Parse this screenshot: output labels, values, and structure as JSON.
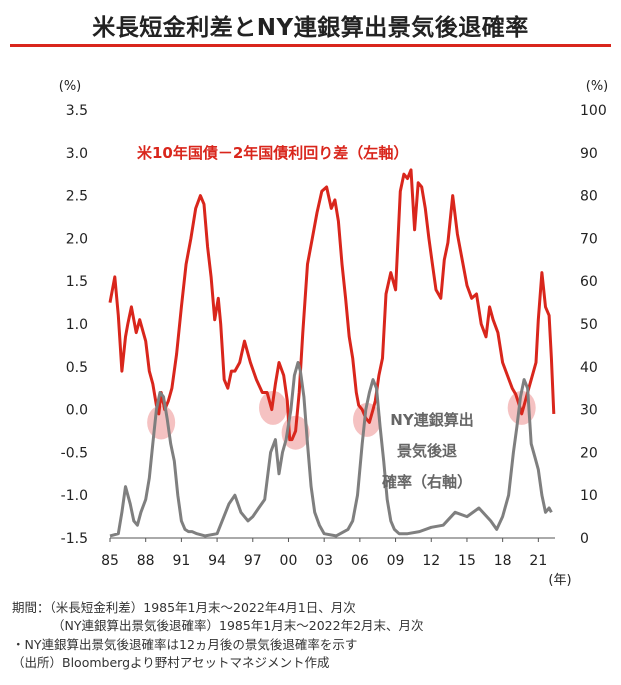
{
  "title": "米長短金利差とNY連銀算出景気後退確率",
  "chart_data": {
    "type": "line",
    "left_axis": {
      "unit": "(%)",
      "ylim": [
        -1.5,
        3.5
      ],
      "ticks": [
        "-1.5",
        "-1.0",
        "-0.5",
        "0.0",
        "0.5",
        "1.0",
        "1.5",
        "2.0",
        "2.5",
        "3.0",
        "3.5"
      ]
    },
    "right_axis": {
      "unit": "(%)",
      "ylim": [
        0,
        100
      ],
      "ticks": [
        "0",
        "10",
        "20",
        "30",
        "40",
        "50",
        "60",
        "70",
        "80",
        "90",
        "100"
      ]
    },
    "x_axis": {
      "unit": "(年)",
      "xlim": [
        1985,
        2022.4
      ],
      "tick_labels": [
        "85",
        "88",
        "91",
        "94",
        "97",
        "00",
        "03",
        "06",
        "09",
        "12",
        "15",
        "18",
        "21"
      ]
    },
    "series": [
      {
        "name": "米10年国債－2年国債利回り差（左軸）",
        "axis": "left",
        "color": "#d9261c",
        "x": [
          1985.0,
          1985.4,
          1985.7,
          1986.0,
          1986.3,
          1986.5,
          1986.8,
          1987.2,
          1987.5,
          1988.0,
          1988.3,
          1988.6,
          1988.9,
          1989.1,
          1989.3,
          1989.6,
          1989.9,
          1990.2,
          1990.6,
          1991.0,
          1991.4,
          1991.8,
          1992.2,
          1992.6,
          1992.9,
          1993.2,
          1993.5,
          1993.8,
          1994.1,
          1994.3,
          1994.6,
          1994.9,
          1995.2,
          1995.5,
          1995.9,
          1996.3,
          1996.8,
          1997.3,
          1997.8,
          1998.2,
          1998.6,
          1998.9,
          1999.2,
          1999.6,
          1999.9,
          2000.1,
          2000.3,
          2000.6,
          2000.9,
          2001.2,
          2001.6,
          2002.0,
          2002.4,
          2002.8,
          2003.2,
          2003.6,
          2003.9,
          2004.2,
          2004.5,
          2004.8,
          2005.1,
          2005.4,
          2005.7,
          2005.9,
          2006.2,
          2006.5,
          2006.8,
          2007.1,
          2007.3,
          2007.6,
          2007.9,
          2008.2,
          2008.6,
          2009.0,
          2009.4,
          2009.7,
          2010.0,
          2010.3,
          2010.6,
          2010.9,
          2011.2,
          2011.5,
          2011.8,
          2012.1,
          2012.4,
          2012.8,
          2013.1,
          2013.4,
          2013.8,
          2014.2,
          2014.6,
          2015.0,
          2015.4,
          2015.8,
          2016.2,
          2016.6,
          2016.9,
          2017.2,
          2017.6,
          2018.0,
          2018.4,
          2018.8,
          2019.1,
          2019.4,
          2019.6,
          2019.9,
          2020.2,
          2020.5,
          2020.8,
          2021.0,
          2021.3,
          2021.6,
          2021.9,
          2022.1,
          2022.3
        ],
        "y": [
          1.25,
          1.55,
          1.1,
          0.45,
          0.85,
          1.0,
          1.2,
          0.9,
          1.05,
          0.8,
          0.45,
          0.3,
          0.05,
          -0.05,
          0.2,
          0.0,
          0.1,
          0.25,
          0.65,
          1.2,
          1.7,
          2.0,
          2.35,
          2.5,
          2.4,
          1.9,
          1.55,
          1.05,
          1.3,
          1.0,
          0.35,
          0.25,
          0.45,
          0.45,
          0.55,
          0.8,
          0.55,
          0.35,
          0.2,
          0.2,
          0.0,
          0.3,
          0.55,
          0.4,
          0.1,
          -0.35,
          -0.35,
          -0.25,
          0.2,
          0.9,
          1.7,
          2.0,
          2.3,
          2.55,
          2.6,
          2.35,
          2.45,
          2.2,
          1.7,
          1.3,
          0.85,
          0.6,
          0.2,
          0.05,
          0.0,
          -0.1,
          -0.15,
          0.0,
          0.1,
          0.4,
          0.6,
          1.35,
          1.6,
          1.4,
          2.55,
          2.75,
          2.7,
          2.8,
          2.1,
          2.65,
          2.6,
          2.35,
          2.0,
          1.7,
          1.4,
          1.3,
          1.75,
          1.95,
          2.5,
          2.05,
          1.75,
          1.45,
          1.3,
          1.35,
          1.0,
          0.85,
          1.2,
          1.05,
          0.9,
          0.55,
          0.4,
          0.25,
          0.18,
          0.05,
          -0.05,
          0.1,
          0.25,
          0.4,
          0.55,
          1.05,
          1.6,
          1.2,
          1.1,
          0.6,
          -0.05
        ]
      },
      {
        "name": "NY連銀算出景気後退確率（右軸）",
        "axis": "right",
        "color": "#7f7f7f",
        "x": [
          1985.0,
          1985.7,
          1986.0,
          1986.3,
          1986.7,
          1987.0,
          1987.3,
          1987.6,
          1988.0,
          1988.3,
          1988.6,
          1988.9,
          1989.2,
          1989.5,
          1989.8,
          1990.1,
          1990.4,
          1990.7,
          1991.0,
          1991.3,
          1991.6,
          1991.9,
          1992.3,
          1993.0,
          1994.0,
          1995.0,
          1995.5,
          1996.0,
          1996.6,
          1997.0,
          1997.5,
          1998.0,
          1998.5,
          1998.9,
          1999.2,
          1999.5,
          1999.8,
          2000.2,
          2000.5,
          2000.8,
          2001.0,
          2001.3,
          2001.6,
          2001.9,
          2002.2,
          2002.6,
          2003.0,
          2004.0,
          2005.0,
          2005.4,
          2005.8,
          2006.2,
          2006.5,
          2006.8,
          2007.1,
          2007.4,
          2007.7,
          2008.0,
          2008.3,
          2008.6,
          2008.9,
          2009.3,
          2010.0,
          2011.0,
          2012.0,
          2013.0,
          2014.0,
          2015.0,
          2016.0,
          2017.0,
          2017.5,
          2018.0,
          2018.5,
          2018.9,
          2019.2,
          2019.5,
          2019.8,
          2020.1,
          2020.4,
          2020.7,
          2021.0,
          2021.3,
          2021.6,
          2021.9,
          2022.1
        ],
        "y": [
          0.5,
          1,
          6,
          12,
          8,
          4,
          3,
          6,
          9,
          14,
          22,
          30,
          34,
          33,
          28,
          22,
          18,
          10,
          4,
          2,
          1.5,
          1.5,
          1,
          0.5,
          1,
          8,
          10,
          6,
          4,
          5,
          7,
          9,
          20,
          23,
          15,
          20,
          23,
          30,
          38,
          41,
          39,
          33,
          22,
          12,
          6,
          3,
          1,
          0.5,
          2,
          4,
          10,
          22,
          30,
          34,
          37,
          35,
          26,
          18,
          9,
          4,
          2,
          1,
          1,
          1.5,
          2.5,
          3,
          6,
          5,
          7,
          4,
          2,
          5,
          10,
          20,
          26,
          33,
          37,
          35,
          22,
          19,
          16,
          10,
          6,
          7,
          6
        ]
      }
    ],
    "annotations": {
      "red_label": "米10年国債－2年国債利回り差（左軸）",
      "gray_label_lines": [
        "NY連銀算出",
        "景気後退",
        "確率（右軸）"
      ]
    },
    "highlight_circles": [
      {
        "x": 1989.3,
        "y": -0.15
      },
      {
        "x": 1998.7,
        "y": 0.02
      },
      {
        "x": 2000.6,
        "y": -0.27
      },
      {
        "x": 2006.6,
        "y": -0.12
      },
      {
        "x": 2019.6,
        "y": 0.02
      }
    ]
  },
  "notes": {
    "line1": "期間：（米長短金利差）1985年1月末～2022年4月1日、月次",
    "line2": "（NY連銀算出景気後退確率）1985年1月末～2022年2月末、月次",
    "line3": "・NY連銀算出景気後退確率は12ヵ月後の景気後退確率を示す",
    "line4": "（出所）Bloombergより野村アセットマネジメント作成"
  }
}
